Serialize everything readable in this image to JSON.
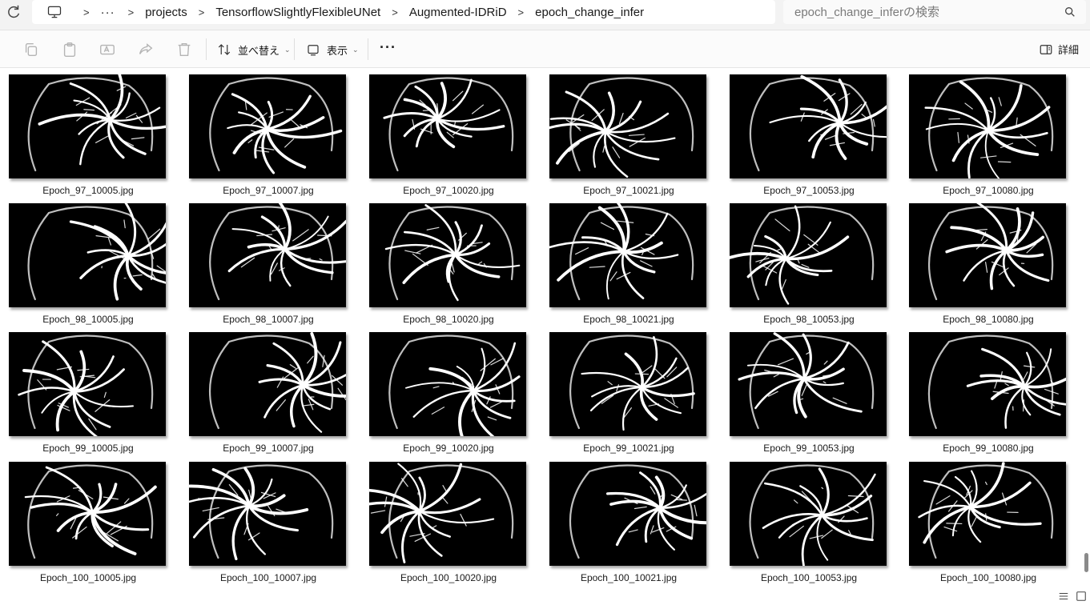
{
  "address": {
    "overflow_label": "···",
    "breadcrumbs": [
      {
        "label": "projects"
      },
      {
        "label": "TensorflowSlightlyFlexibleUNet"
      },
      {
        "label": "Augmented-IDRiD"
      },
      {
        "label": "epoch_change_infer"
      }
    ],
    "search_placeholder": "epoch_change_inferの検索"
  },
  "toolbar": {
    "disabled_icons": [
      "copy-icon",
      "paste-icon",
      "rename-icon",
      "share-icon",
      "delete-icon"
    ],
    "sort_label": "並べ替え",
    "view_label": "表示",
    "more_label": "···",
    "details_label": "詳細"
  },
  "files": [
    {
      "name": "Epoch_97_10005.jpg"
    },
    {
      "name": "Epoch_97_10007.jpg"
    },
    {
      "name": "Epoch_97_10020.jpg"
    },
    {
      "name": "Epoch_97_10021.jpg"
    },
    {
      "name": "Epoch_97_10053.jpg"
    },
    {
      "name": "Epoch_97_10080.jpg"
    },
    {
      "name": "Epoch_98_10005.jpg"
    },
    {
      "name": "Epoch_98_10007.jpg"
    },
    {
      "name": "Epoch_98_10020.jpg"
    },
    {
      "name": "Epoch_98_10021.jpg"
    },
    {
      "name": "Epoch_98_10053.jpg"
    },
    {
      "name": "Epoch_98_10080.jpg"
    },
    {
      "name": "Epoch_99_10005.jpg"
    },
    {
      "name": "Epoch_99_10007.jpg"
    },
    {
      "name": "Epoch_99_10020.jpg"
    },
    {
      "name": "Epoch_99_10021.jpg"
    },
    {
      "name": "Epoch_99_10053.jpg"
    },
    {
      "name": "Epoch_99_10080.jpg"
    },
    {
      "name": "Epoch_100_10005.jpg"
    },
    {
      "name": "Epoch_100_10007.jpg"
    },
    {
      "name": "Epoch_100_10020.jpg"
    },
    {
      "name": "Epoch_100_10021.jpg"
    },
    {
      "name": "Epoch_100_10053.jpg"
    },
    {
      "name": "Epoch_100_10080.jpg"
    }
  ],
  "colors": {
    "thumbnail_background": "#000000",
    "vessel": "#ffffff"
  }
}
